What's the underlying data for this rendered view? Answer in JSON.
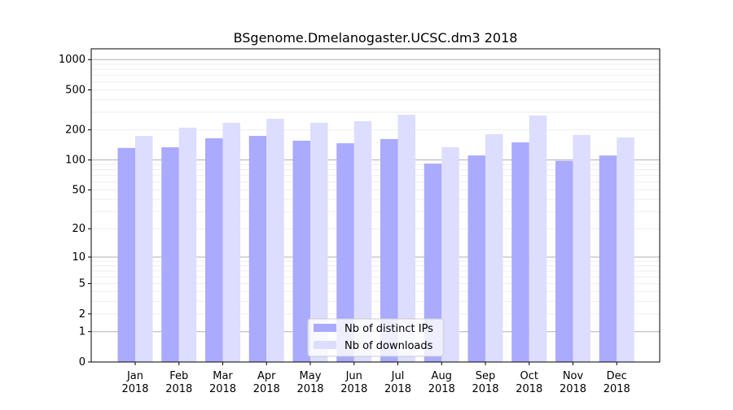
{
  "chart_data": {
    "type": "bar",
    "title": "BSgenome.Dmelanogaster.UCSC.dm3 2018",
    "xlabel": "",
    "ylabel": "",
    "yscale": "log(1+y)",
    "ylim": [
      0,
      1270
    ],
    "yticks": [
      0,
      1,
      2,
      5,
      10,
      20,
      50,
      100,
      200,
      500,
      1000
    ],
    "grid": true,
    "legend_position": "bottom-center",
    "categories": [
      "Jan\n2018",
      "Feb\n2018",
      "Mar\n2018",
      "Apr\n2018",
      "May\n2018",
      "Jun\n2018",
      "Jul\n2018",
      "Aug\n2018",
      "Sep\n2018",
      "Oct\n2018",
      "Nov\n2018",
      "Dec\n2018"
    ],
    "series": [
      {
        "name": "Nb of distinct IPs",
        "color": "#aaaaff",
        "values": [
          132,
          134,
          165,
          174,
          156,
          147,
          162,
          92,
          111,
          150,
          98,
          111
        ]
      },
      {
        "name": "Nb of downloads",
        "color": "#ddddff",
        "values": [
          174,
          210,
          235,
          258,
          235,
          244,
          283,
          134,
          181,
          278,
          178,
          168
        ]
      }
    ]
  }
}
